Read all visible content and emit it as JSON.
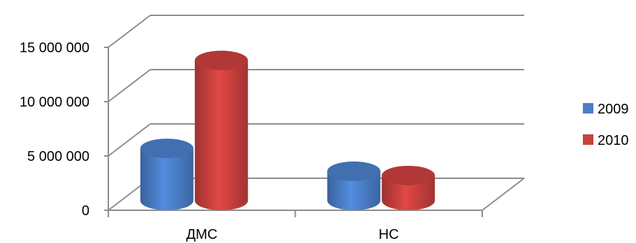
{
  "chart_data": {
    "type": "bar",
    "style": "3d-cylinder",
    "categories": [
      "ДМС",
      "НС"
    ],
    "series": [
      {
        "name": "2009",
        "values": [
          4800000,
          2700000
        ],
        "color": "#4a7ec8"
      },
      {
        "name": "2010",
        "values": [
          12900000,
          2300000
        ],
        "color": "#c9403d"
      }
    ],
    "yticks": [
      "0",
      "5 000 000",
      "10 000 000",
      "15 000 000"
    ],
    "ylim": [
      0,
      15000000
    ],
    "grid": true,
    "legend": "right"
  }
}
